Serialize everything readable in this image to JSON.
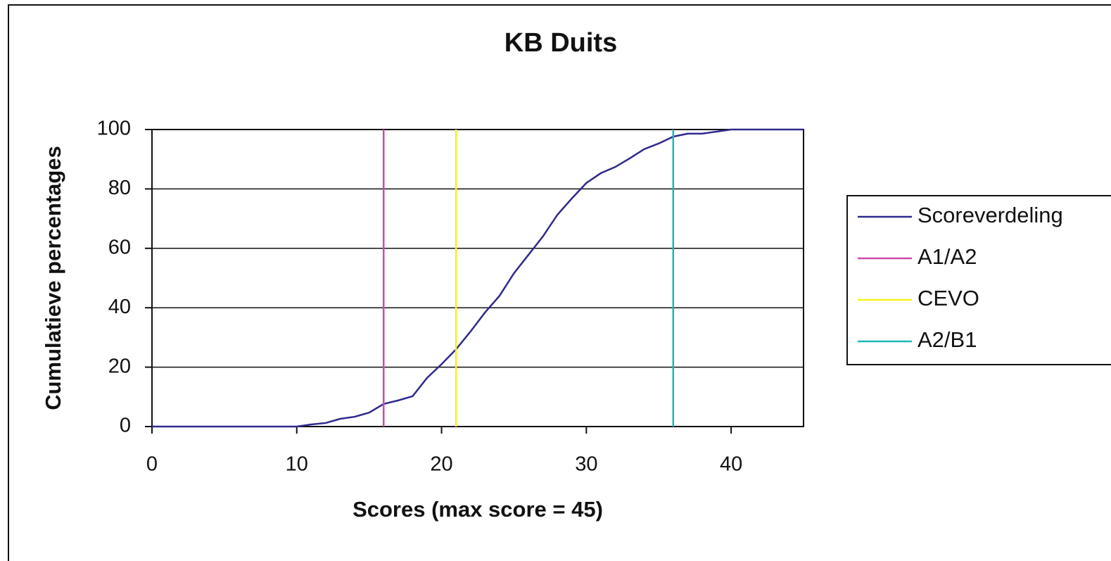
{
  "chart_data": {
    "type": "line",
    "title": "KB Duits",
    "xlabel": "Scores (max score =  45)",
    "ylabel": "Cumulatieve percentages",
    "xlim": [
      0,
      45
    ],
    "xticks": [
      0,
      10,
      20,
      30,
      40
    ],
    "ylim": [
      0,
      100
    ],
    "yticks": [
      0,
      20,
      40,
      60,
      80,
      100
    ],
    "grid": true,
    "legend": "right",
    "series": [
      {
        "name": "Scoreverdeling",
        "color": "#2e2a8c",
        "x": [
          0,
          1,
          2,
          3,
          4,
          5,
          6,
          7,
          8,
          9,
          10,
          11,
          12,
          13,
          14,
          15,
          16,
          17,
          18,
          19,
          20,
          21,
          22,
          23,
          24,
          25,
          26,
          27,
          28,
          29,
          30,
          31,
          32,
          33,
          34,
          35,
          36,
          37,
          38,
          39,
          40,
          41,
          42,
          43,
          44,
          45
        ],
        "values": [
          0,
          0,
          0,
          0,
          0,
          0,
          0,
          0,
          0,
          0,
          0,
          0.7,
          1.2,
          2.6,
          3.3,
          4.7,
          7.6,
          8.8,
          10.2,
          16.4,
          21,
          26,
          32,
          38.4,
          44,
          51.6,
          57.8,
          64,
          71.3,
          76.8,
          82,
          85.3,
          87.4,
          90.3,
          93.4,
          95.3,
          97.6,
          98.6,
          98.6,
          99.3,
          100,
          100,
          100,
          100,
          100,
          100
        ]
      },
      {
        "name": "A1/A2",
        "color": "#cc4aa8",
        "x": [
          16,
          16
        ],
        "values": [
          0,
          100
        ]
      },
      {
        "name": "CEVO",
        "color": "#f5f21a",
        "x": [
          21,
          21
        ],
        "values": [
          0,
          100
        ]
      },
      {
        "name": "A2/B1",
        "color": "#19b8b8",
        "x": [
          36,
          36
        ],
        "values": [
          0,
          100
        ]
      }
    ]
  }
}
